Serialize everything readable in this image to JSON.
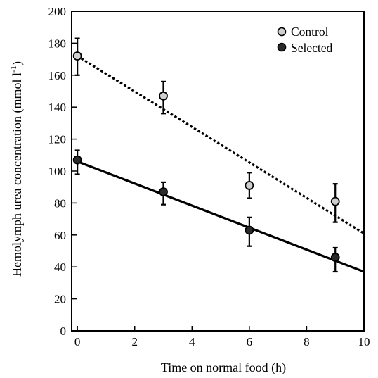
{
  "chart_data": {
    "type": "scatter",
    "xlabel": "Time on normal food (h)",
    "ylabel": "Hemolymph urea concentration (mmol l",
    "ylabel_sup": "-1",
    "ylabel_close": ")",
    "xlim": [
      -0.2,
      10
    ],
    "ylim": [
      0,
      200
    ],
    "x_ticks": [
      "0",
      "2",
      "4",
      "6",
      "8",
      "10"
    ],
    "y_ticks": [
      "0",
      "20",
      "40",
      "60",
      "80",
      "100",
      "120",
      "140",
      "160",
      "180",
      "200"
    ],
    "grid": false,
    "legend_position": "top-right",
    "series": [
      {
        "name": "Control",
        "marker": "open-circle",
        "marker_fill": "#cfcfcf",
        "x": [
          0,
          3,
          6,
          9
        ],
        "y": [
          172,
          147,
          91,
          81
        ],
        "error_low": [
          160,
          136,
          83,
          68
        ],
        "error_high": [
          183,
          156,
          99,
          92
        ],
        "fit_line": {
          "style": "dotted",
          "from": [
            0,
            172
          ],
          "to": [
            10,
            61
          ]
        }
      },
      {
        "name": "Selected",
        "marker": "filled-circle",
        "marker_fill": "#2a2a2a",
        "x": [
          0,
          3,
          6,
          9
        ],
        "y": [
          107,
          87,
          63,
          46
        ],
        "error_low": [
          98,
          79,
          53,
          37
        ],
        "error_high": [
          113,
          93,
          71,
          52
        ],
        "fit_line": {
          "style": "solid",
          "from": [
            0,
            106
          ],
          "to": [
            10,
            37
          ]
        }
      }
    ]
  }
}
